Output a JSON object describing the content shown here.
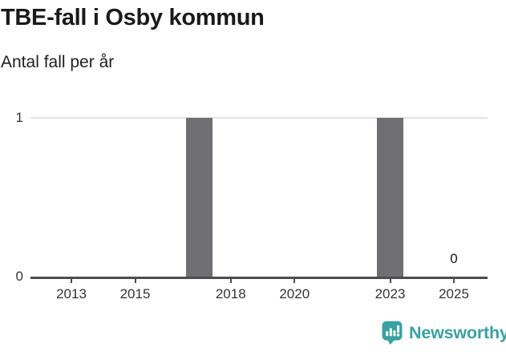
{
  "header": {
    "title": "TBE-fall i Osby kommun",
    "subtitle": "Antal fall per år"
  },
  "chart_data": {
    "type": "bar",
    "title": "TBE-fall i Osby kommun",
    "subtitle": "Antal fall per år",
    "x": [
      2012,
      2013,
      2014,
      2015,
      2016,
      2017,
      2018,
      2019,
      2020,
      2021,
      2022,
      2023,
      2024,
      2025
    ],
    "values": [
      0,
      0,
      0,
      0,
      0,
      1,
      0,
      0,
      0,
      0,
      0,
      1,
      0,
      0
    ],
    "xticks": [
      "2013",
      "2015",
      "2018",
      "2020",
      "2023",
      "2025"
    ],
    "yticks": [
      "0",
      "1"
    ],
    "ylim": [
      0,
      1
    ],
    "grid": "horizontal gridline at y=1 only",
    "legend": "none",
    "bar_color": "#6e6e73",
    "axis_color": "#4d4d4d",
    "grid_color": "#e3e3e3",
    "tick_label_color": "#333333",
    "annotations": [
      {
        "x": 2025,
        "y": 0,
        "text": "0"
      }
    ]
  },
  "branding": {
    "logo_text": "Newsworthy",
    "logo_icon": "newsworthy-bar-chart-bubble-icon",
    "accent_color": "#3aa0a0"
  }
}
